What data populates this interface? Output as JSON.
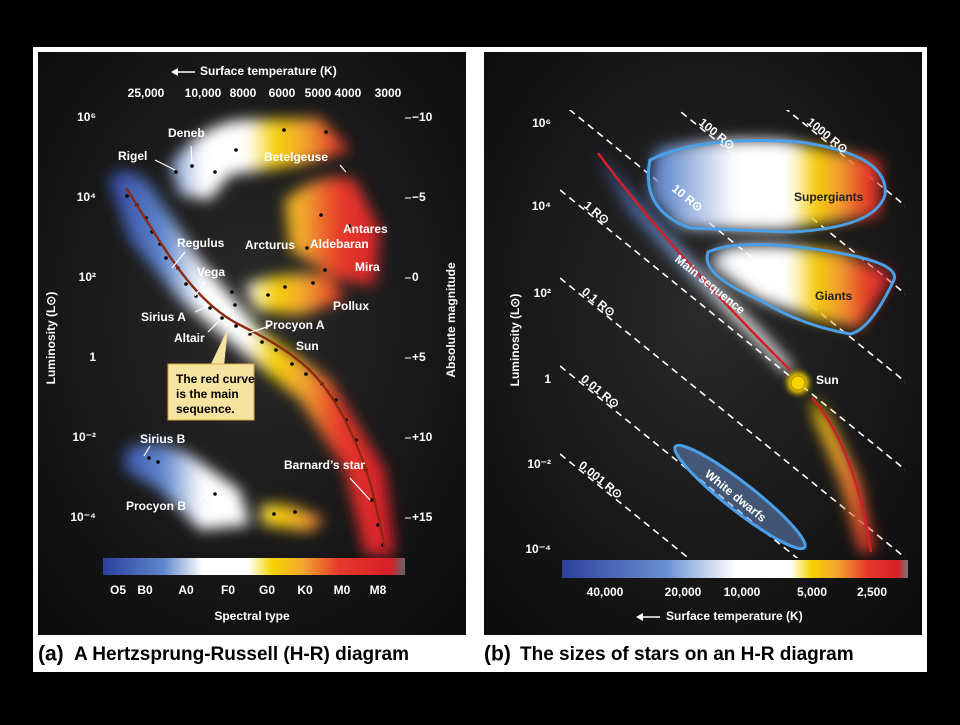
{
  "panel_a": {
    "caption_letter": "(a)",
    "caption": "A Hertzsprung-Russell (H-R) diagram",
    "top_axis_title": "Surface temperature (K)",
    "top_ticks": [
      "25,000",
      "10,000",
      "8000",
      "6000",
      "5000",
      "4000",
      "3000"
    ],
    "left_axis_title": "Luminosity (L⊙)",
    "left_ticks": [
      "10⁶",
      "10⁴",
      "10²",
      "1",
      "10⁻²",
      "10⁻⁴"
    ],
    "right_axis_title": "Absolute magnitude",
    "right_ticks": [
      "−10",
      "−5",
      "0",
      "+5",
      "+10",
      "+15"
    ],
    "bottom_axis_title": "Spectral type",
    "spectral_types": [
      "O5",
      "B0",
      "A0",
      "F0",
      "G0",
      "K0",
      "M0",
      "M8"
    ],
    "stars": [
      "Deneb",
      "Rigel",
      "Betelgeuse",
      "Antares",
      "Regulus",
      "Arcturus",
      "Aldebaran",
      "Vega",
      "Mira",
      "Pollux",
      "Sirius A",
      "Procyon A",
      "Altair",
      "Sun",
      "Sirius B",
      "Barnard’s star",
      "Procyon B"
    ],
    "callout": [
      "The red curve",
      "is the main",
      "sequence."
    ]
  },
  "panel_b": {
    "caption_letter": "(b)",
    "caption": "The sizes of stars on an H-R diagram",
    "left_axis_title": "Luminosity (L⊙)",
    "left_ticks": [
      "10⁶",
      "10⁴",
      "10²",
      "1",
      "10⁻²",
      "10⁻⁴"
    ],
    "bottom_axis_title": "Surface temperature (K)",
    "bottom_ticks": [
      "40,000",
      "20,000",
      "10,000",
      "5,000",
      "2,500"
    ],
    "radius_lines": [
      "1000 R⊙",
      "100 R⊙",
      "10 R⊙",
      "1 R⊙",
      "0.1 R⊙",
      "0.01 R⊙",
      "0.001 R⊙"
    ],
    "regions": [
      "Supergiants",
      "Giants",
      "Main sequence",
      "Sun",
      "White dwarfs"
    ]
  }
}
